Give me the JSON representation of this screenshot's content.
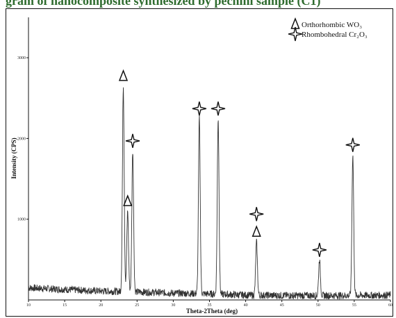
{
  "caption": {
    "text": "gram of nanocomposite synthesized by pechini sample (C1)"
  },
  "chart_data": {
    "type": "line",
    "title": "",
    "xlabel": "Theta-2Theta (deg)",
    "ylabel": "Intensity (CPS)",
    "xlim": [
      10,
      60
    ],
    "ylim": [
      0,
      3500
    ],
    "xticks": [
      10,
      15,
      20,
      25,
      30,
      35,
      40,
      45,
      50,
      55,
      60
    ],
    "yticks": [
      1000,
      2000,
      3000
    ],
    "grid": false,
    "legend_position": "top-right",
    "line_color": "#333333",
    "baseline": [
      {
        "x": 10,
        "y": 150
      },
      {
        "x": 15,
        "y": 130
      },
      {
        "x": 20,
        "y": 110
      },
      {
        "x": 25,
        "y": 100
      },
      {
        "x": 30,
        "y": 85
      },
      {
        "x": 35,
        "y": 75
      },
      {
        "x": 40,
        "y": 60
      },
      {
        "x": 45,
        "y": 55
      },
      {
        "x": 50,
        "y": 55
      },
      {
        "x": 55,
        "y": 55
      },
      {
        "x": 60,
        "y": 60
      }
    ],
    "peaks": [
      {
        "x": 23.1,
        "y": 2650,
        "phase": "Orthorhombic WO3"
      },
      {
        "x": 23.7,
        "y": 1100,
        "phase": "Orthorhombic WO3"
      },
      {
        "x": 24.4,
        "y": 1850,
        "phase": "Rhombohedral Cr2O3"
      },
      {
        "x": 33.6,
        "y": 2250,
        "phase": "Rhombohedral Cr2O3"
      },
      {
        "x": 36.2,
        "y": 2250,
        "phase": "Rhombohedral Cr2O3"
      },
      {
        "x": 41.5,
        "y": 720,
        "phase": "Orthorhombic WO3"
      },
      {
        "x": 41.5,
        "y": 720,
        "phase": "Rhombohedral Cr2O3"
      },
      {
        "x": 50.2,
        "y": 500,
        "phase": "Rhombohedral Cr2O3"
      },
      {
        "x": 54.8,
        "y": 1800,
        "phase": "Rhombohedral Cr2O3"
      }
    ],
    "legend": [
      {
        "symbol": "triangle",
        "label": "Orthorhombic WO₃"
      },
      {
        "symbol": "star",
        "label": "Rhombohedral Cr₂O₃"
      }
    ]
  }
}
